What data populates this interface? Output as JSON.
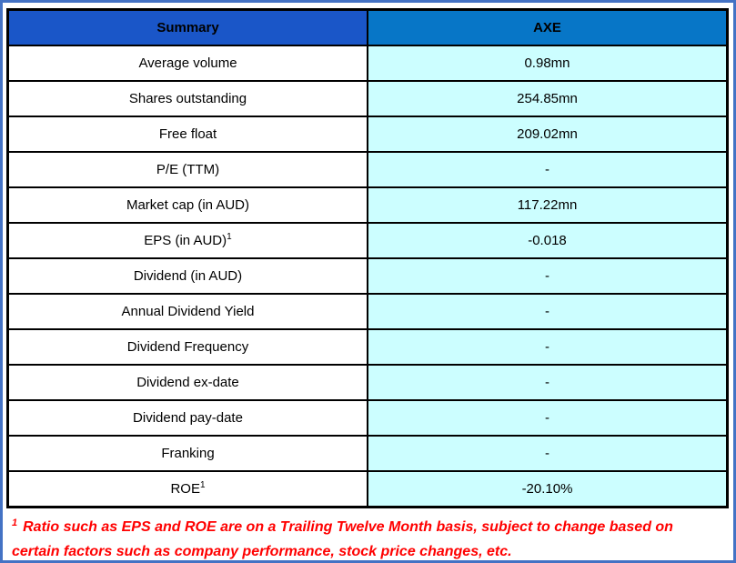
{
  "frame": {
    "border_color": "#4472C4"
  },
  "table": {
    "header": {
      "col1": "Summary",
      "col2": "AXE",
      "col1_bg": "#1A56C8",
      "col2_bg": "#0776C7"
    },
    "value_bg": "#CCFEFF",
    "rows": [
      {
        "label": "Average volume",
        "value": "0.98mn"
      },
      {
        "label": "Shares outstanding",
        "value": "254.85mn"
      },
      {
        "label": "Free float",
        "value": "209.02mn"
      },
      {
        "label": "P/E (TTM)",
        "value": "-"
      },
      {
        "label": "Market cap (in AUD)",
        "value": "117.22mn"
      },
      {
        "label": "EPS (in AUD)",
        "superscript": "1",
        "value": "-0.018"
      },
      {
        "label": "Dividend (in AUD)",
        "value": "-"
      },
      {
        "label": "Annual Dividend Yield",
        "value": "-"
      },
      {
        "label": "Dividend Frequency",
        "value": "-"
      },
      {
        "label": "Dividend ex-date",
        "value": "-"
      },
      {
        "label": "Dividend pay-date",
        "value": "-"
      },
      {
        "label": "Franking",
        "value": "-"
      },
      {
        "label": "ROE",
        "superscript": "1",
        "value": "-20.10%"
      }
    ]
  },
  "footnote": {
    "marker": "1",
    "text": "Ratio such as EPS and ROE are on a Trailing Twelve Month basis, subject to change based on certain factors such as company performance, stock price changes, etc.",
    "color": "#FF0000"
  },
  "chart_data": {
    "type": "table",
    "columns": [
      "Summary",
      "AXE"
    ],
    "rows": [
      [
        "Average volume",
        "0.98mn"
      ],
      [
        "Shares outstanding",
        "254.85mn"
      ],
      [
        "Free float",
        "209.02mn"
      ],
      [
        "P/E (TTM)",
        "-"
      ],
      [
        "Market cap (in AUD)",
        "117.22mn"
      ],
      [
        "EPS (in AUD)¹",
        "-0.018"
      ],
      [
        "Dividend (in AUD)",
        "-"
      ],
      [
        "Annual Dividend Yield",
        "-"
      ],
      [
        "Dividend Frequency",
        "-"
      ],
      [
        "Dividend ex-date",
        "-"
      ],
      [
        "Dividend pay-date",
        "-"
      ],
      [
        "Franking",
        "-"
      ],
      [
        "ROE¹",
        "-20.10%"
      ]
    ],
    "footnote": "¹ Ratio such as EPS and ROE are on a Trailing Twelve Month basis, subject to change based on certain factors such as company performance, stock price changes, etc.",
    "legend_position": "none",
    "grid": true
  }
}
